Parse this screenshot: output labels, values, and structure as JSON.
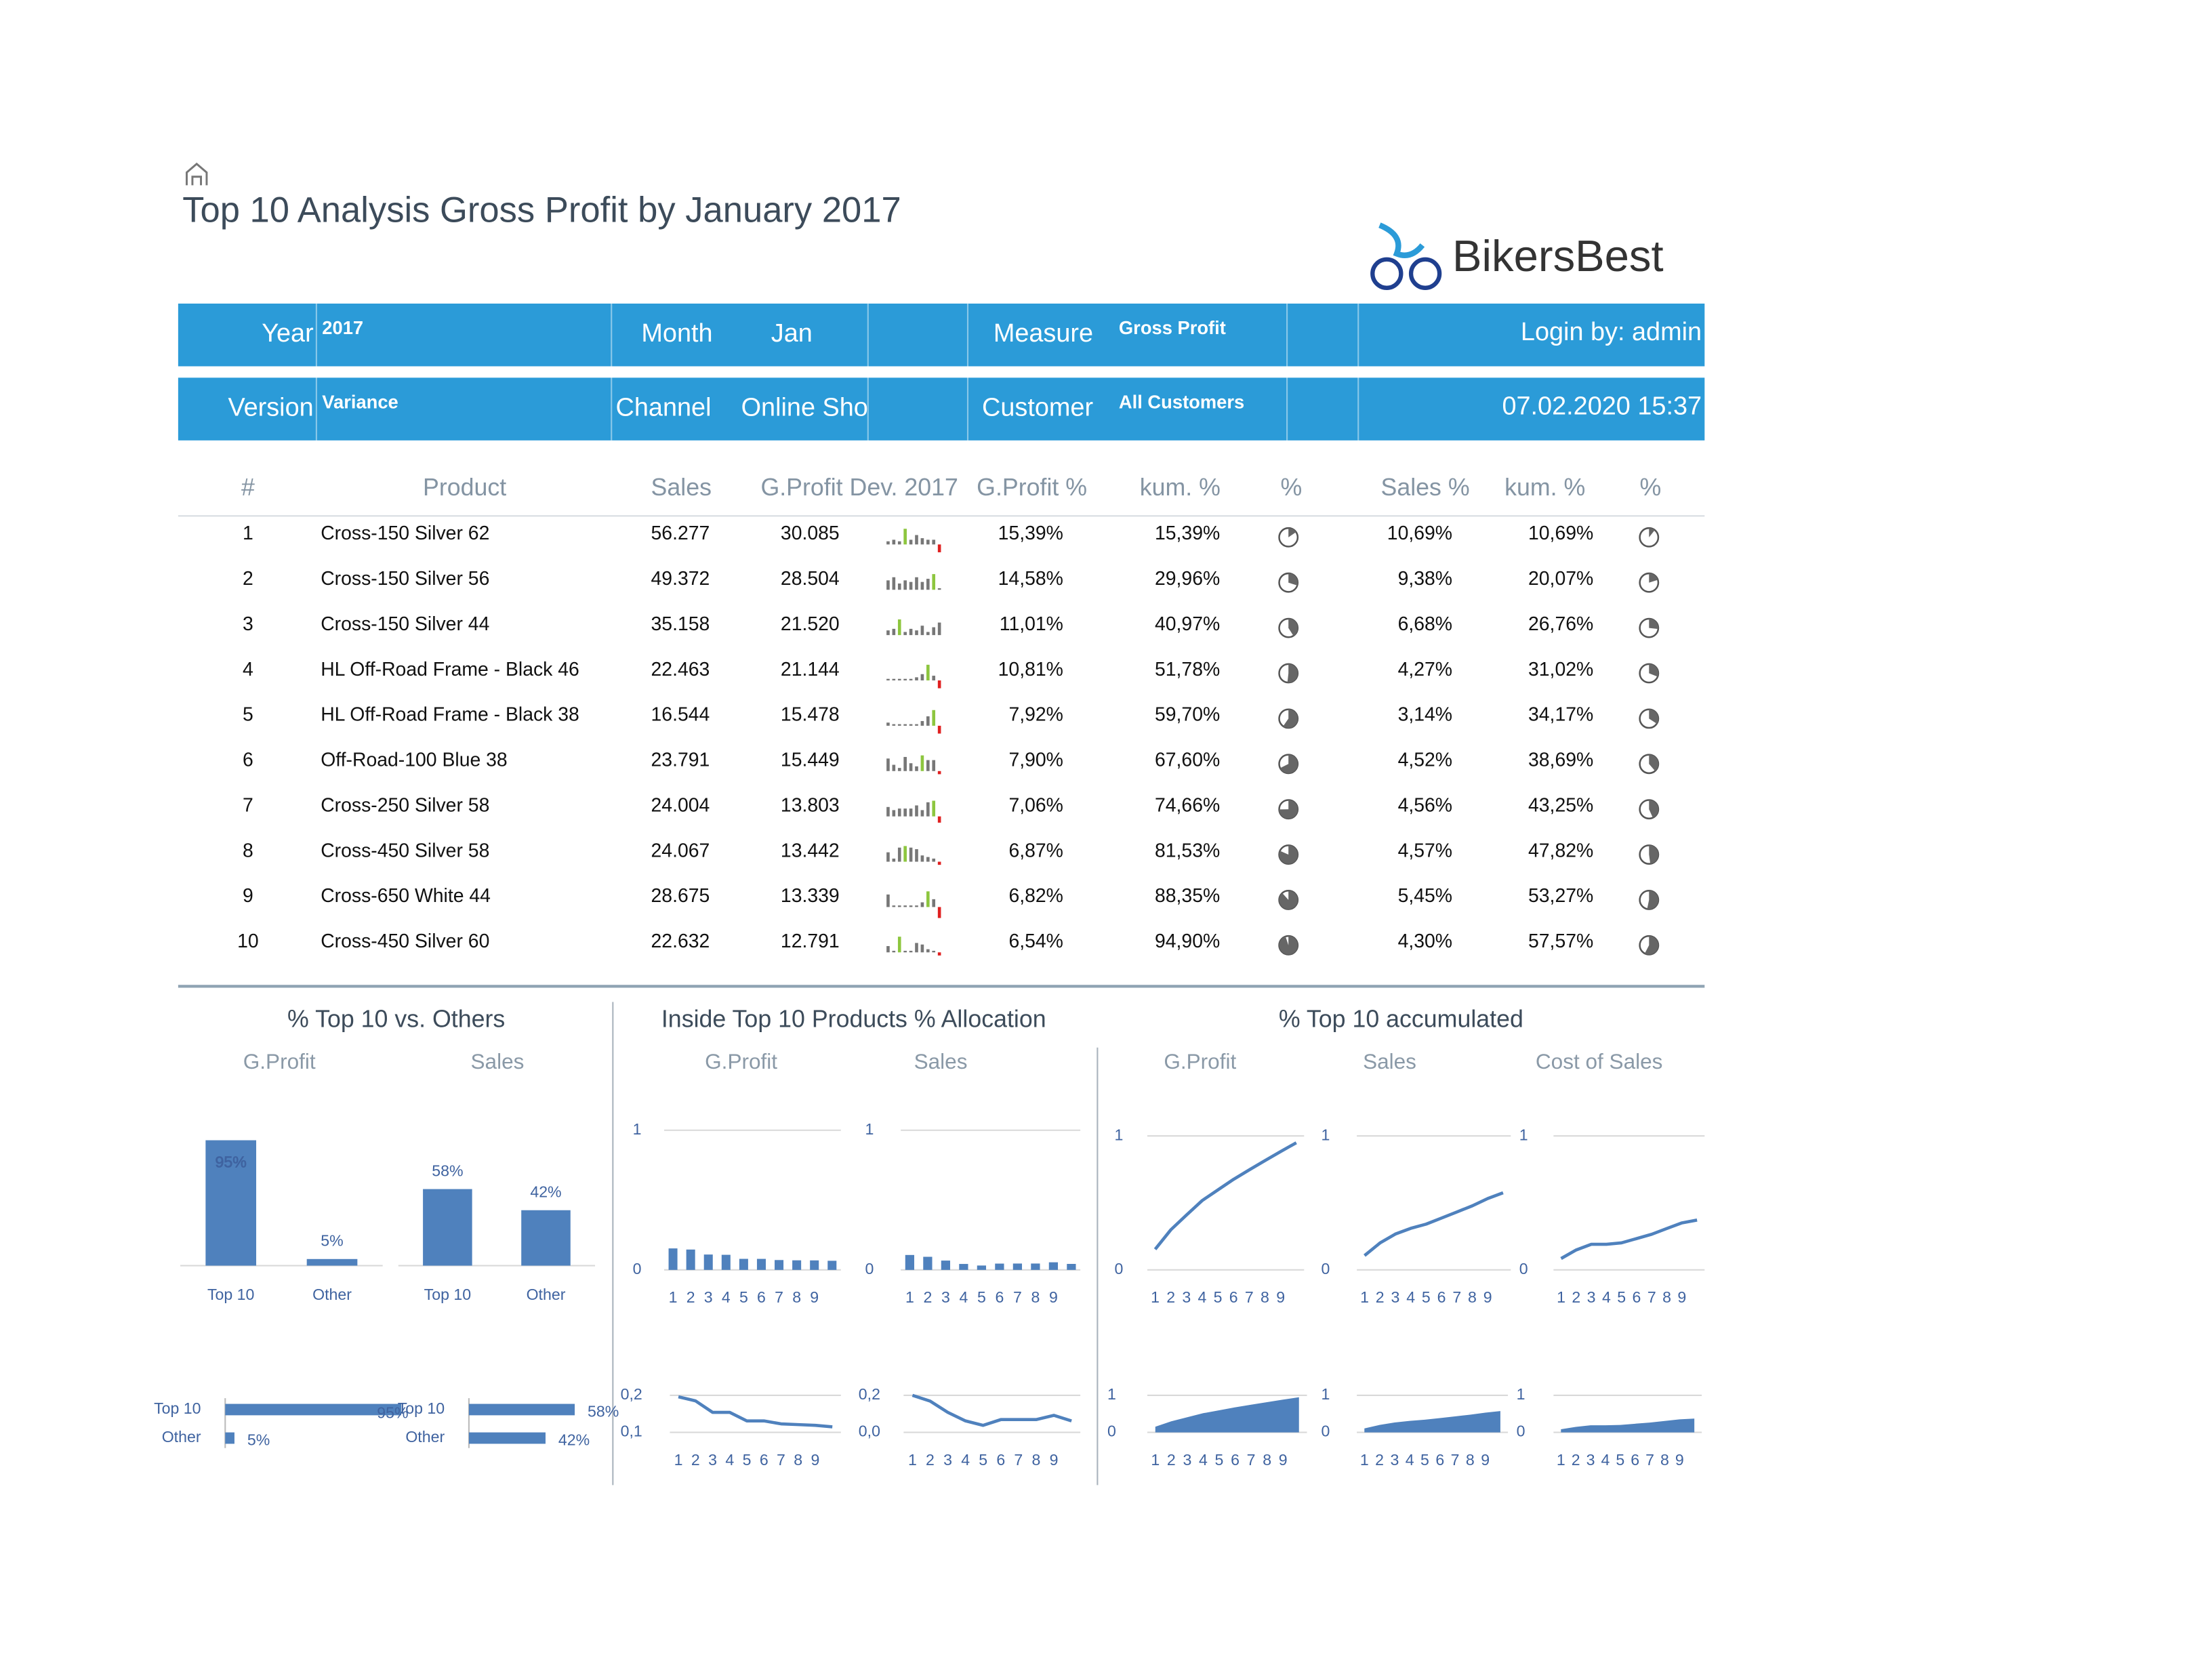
{
  "header": {
    "title": "Top 10 Analysis Gross Profit by January 2017",
    "logo": "BikersBest"
  },
  "filters": {
    "year_label": "Year",
    "year": "2017",
    "month_label": "Month",
    "month": "Jan",
    "measure_label": "Measure",
    "measure": "Gross Profit",
    "login": "Login by: admin",
    "version_label": "Version",
    "version": "Variance",
    "channel_label": "Channel",
    "channel": "Online Sho",
    "customer_label": "Customer",
    "customer": "All Customers",
    "datetime": "07.02.2020 15:37"
  },
  "table": {
    "header": [
      "#",
      "Product",
      "Sales",
      "G.Profit Dev. 2017",
      "G.Profit %",
      "kum. %",
      "%",
      "Sales %",
      "kum. %",
      "%"
    ],
    "rows": [
      {
        "rank": 1,
        "product": "Cross-150 Silver 62",
        "sales": "56.277",
        "gprofit": "30.085",
        "spark": [
          0.2,
          0.3,
          0.2,
          1,
          0.3,
          0.6,
          0.4,
          0.3,
          0.3,
          -0.5
        ],
        "gp_pct": "15,39%",
        "gp_kum": "15,39%",
        "sales_pct": "10,69%",
        "sales_kum": "10,69%"
      },
      {
        "rank": 2,
        "product": "Cross-150 Silver 56",
        "sales": "49.372",
        "gprofit": "28.504",
        "spark": [
          0.6,
          0.8,
          0.4,
          0.6,
          0.5,
          0.8,
          0.5,
          0.7,
          1,
          0.1
        ],
        "gp_pct": "14,58%",
        "gp_kum": "29,96%",
        "sales_pct": "9,38%",
        "sales_kum": "20,07%"
      },
      {
        "rank": 3,
        "product": "Cross-150 Silver 44",
        "sales": "35.158",
        "gprofit": "21.520",
        "spark": [
          0.3,
          0.4,
          1,
          0.2,
          0.4,
          0.3,
          0.6,
          0.2,
          0.5,
          0.8
        ],
        "gp_pct": "11,01%",
        "gp_kum": "40,97%",
        "sales_pct": "6,68%",
        "sales_kum": "26,76%"
      },
      {
        "rank": 4,
        "product": "HL Off-Road Frame - Black 46",
        "sales": "22.463",
        "gprofit": "21.144",
        "spark": [
          0.1,
          0.1,
          0.1,
          0.1,
          0.1,
          0.2,
          0.4,
          1,
          0.3,
          -0.5
        ],
        "gp_pct": "10,81%",
        "gp_kum": "51,78%",
        "sales_pct": "4,27%",
        "sales_kum": "31,02%"
      },
      {
        "rank": 5,
        "product": "HL Off-Road Frame - Black 38",
        "sales": "16.544",
        "gprofit": "15.478",
        "spark": [
          0.2,
          0.1,
          0.1,
          0.1,
          0.1,
          0.1,
          0.3,
          0.6,
          1,
          -0.5
        ],
        "gp_pct": "7,92%",
        "gp_kum": "59,70%",
        "sales_pct": "3,14%",
        "sales_kum": "34,17%"
      },
      {
        "rank": 6,
        "product": "Off-Road-100 Blue 38",
        "sales": "23.791",
        "gprofit": "15.449",
        "spark": [
          0.8,
          0.4,
          0.2,
          0.9,
          0.5,
          0.3,
          1,
          0.7,
          0.7,
          -0.2
        ],
        "gp_pct": "7,90%",
        "gp_kum": "67,60%",
        "sales_pct": "4,52%",
        "sales_kum": "38,69%"
      },
      {
        "rank": 7,
        "product": "Cross-250 Silver 58",
        "sales": "24.004",
        "gprofit": "13.803",
        "spark": [
          0.6,
          0.4,
          0.5,
          0.5,
          0.5,
          0.7,
          0.4,
          0.9,
          1,
          -0.4
        ],
        "gp_pct": "7,06%",
        "gp_kum": "74,66%",
        "sales_pct": "4,56%",
        "sales_kum": "43,25%"
      },
      {
        "rank": 8,
        "product": "Cross-450 Silver 58",
        "sales": "24.067",
        "gprofit": "13.442",
        "spark": [
          0.6,
          0.2,
          0.9,
          1,
          0.9,
          0.8,
          0.4,
          0.3,
          0.2,
          -0.2
        ],
        "gp_pct": "6,87%",
        "gp_kum": "81,53%",
        "sales_pct": "4,57%",
        "sales_kum": "47,82%"
      },
      {
        "rank": 9,
        "product": "Cross-650 White 44",
        "sales": "28.675",
        "gprofit": "13.339",
        "spark": [
          0.8,
          0.1,
          0.1,
          0.1,
          0.1,
          0.1,
          0.3,
          1,
          0.5,
          -0.7
        ],
        "gp_pct": "6,82%",
        "gp_kum": "88,35%",
        "sales_pct": "5,45%",
        "sales_kum": "53,27%"
      },
      {
        "rank": 10,
        "product": "Cross-450 Silver 60",
        "sales": "22.632",
        "gprofit": "12.791",
        "spark": [
          0.4,
          0.1,
          1,
          0.1,
          0.1,
          0.6,
          0.5,
          0.2,
          0.1,
          -0.2
        ],
        "gp_pct": "6,54%",
        "gp_kum": "94,90%",
        "sales_pct": "4,30%",
        "sales_kum": "57,57%"
      }
    ]
  },
  "panels": [
    "% Top 10 vs. Others",
    "Inside Top 10 Products % Allocation",
    "% Top 10 accumulated"
  ],
  "chart_data": [
    {
      "type": "bar",
      "title": "G.Profit",
      "categories": [
        "Top 10",
        "Other"
      ],
      "values": [
        95,
        5
      ],
      "value_labels": [
        "95%",
        "5%"
      ],
      "color": "#4f81bd",
      "ylim": [
        0,
        100
      ]
    },
    {
      "type": "bar",
      "title": "Sales",
      "categories": [
        "Top 10",
        "Other"
      ],
      "values": [
        58,
        42
      ],
      "value_labels": [
        "58%",
        "42%"
      ],
      "color": "#4f81bd",
      "ylim": [
        0,
        100
      ]
    },
    {
      "type": "hbar",
      "categories": [
        "Top 10",
        "Other"
      ],
      "values": [
        95,
        5
      ],
      "value_labels": [
        "95%",
        "5%"
      ],
      "color": "#4f81bd",
      "xlim": [
        0,
        100
      ]
    },
    {
      "type": "hbar",
      "categories": [
        "Top 10",
        "Other"
      ],
      "values": [
        58,
        42
      ],
      "value_labels": [
        "58%",
        "42%"
      ],
      "color": "#4f81bd",
      "xlim": [
        0,
        100
      ]
    },
    {
      "type": "bar",
      "title": "G.Profit",
      "categories": [
        1,
        2,
        3,
        4,
        5,
        6,
        7,
        8,
        9,
        null
      ],
      "values": [
        0.1539,
        0.1458,
        0.1101,
        0.1081,
        0.0792,
        0.079,
        0.0706,
        0.0687,
        0.0682,
        0.0654
      ],
      "color": "#4f81bd",
      "ylim": [
        0,
        1
      ],
      "yticks": [
        0,
        1
      ],
      "grid": true
    },
    {
      "type": "bar",
      "title": "Sales",
      "categories": [
        1,
        2,
        3,
        4,
        5,
        6,
        7,
        8,
        9,
        null
      ],
      "values": [
        0.1069,
        0.0938,
        0.0668,
        0.0427,
        0.0314,
        0.0452,
        0.0456,
        0.0457,
        0.0545,
        0.043
      ],
      "color": "#4f81bd",
      "ylim": [
        0,
        1
      ],
      "yticks": [
        0,
        1
      ],
      "grid": true
    },
    {
      "type": "line",
      "categories": [
        1,
        2,
        3,
        4,
        5,
        6,
        7,
        8,
        9,
        null
      ],
      "values": [
        0.196,
        0.185,
        0.154,
        0.154,
        0.131,
        0.131,
        0.123,
        0.121,
        0.119,
        0.115
      ],
      "color": "#4f81bd",
      "ylim": [
        0.1,
        0.2
      ],
      "yticks": [
        {
          "value": 0.1,
          "label": "0,1"
        },
        {
          "value": 0.2,
          "label": "0,2"
        }
      ],
      "grid": true
    },
    {
      "type": "line",
      "categories": [
        1,
        2,
        3,
        4,
        5,
        6,
        7,
        8,
        9,
        null
      ],
      "values": [
        0.2,
        0.169,
        0.108,
        0.062,
        0.038,
        0.069,
        0.069,
        0.069,
        0.092,
        0.062
      ],
      "color": "#4f81bd",
      "ylim": [
        0,
        0.2
      ],
      "yticks": [
        {
          "value": 0,
          "label": "0,0"
        },
        {
          "value": 0.2,
          "label": "0,2"
        }
      ],
      "grid": true
    },
    {
      "type": "line",
      "title": "G.Profit",
      "categories": [
        1,
        2,
        3,
        4,
        5,
        6,
        7,
        8,
        9,
        null
      ],
      "values": [
        0.1539,
        0.2996,
        0.4097,
        0.5178,
        0.597,
        0.676,
        0.7466,
        0.8153,
        0.8835,
        0.949
      ],
      "color": "#4f81bd",
      "ylim": [
        0,
        1
      ],
      "yticks": [
        0,
        1
      ],
      "grid": true
    },
    {
      "type": "line",
      "title": "Sales",
      "categories": [
        1,
        2,
        3,
        4,
        5,
        6,
        7,
        8,
        9,
        null
      ],
      "values": [
        0.1069,
        0.2007,
        0.2676,
        0.3102,
        0.3417,
        0.3869,
        0.4325,
        0.4782,
        0.5327,
        0.5757
      ],
      "color": "#4f81bd",
      "ylim": [
        0,
        1
      ],
      "yticks": [
        0,
        1
      ],
      "grid": true
    },
    {
      "type": "line",
      "title": "Cost of Sales",
      "categories": [
        1,
        2,
        3,
        4,
        5,
        6,
        7,
        8,
        9,
        null
      ],
      "values": [
        0.085,
        0.149,
        0.191,
        0.191,
        0.202,
        0.234,
        0.266,
        0.309,
        0.351,
        0.372
      ],
      "color": "#4f81bd",
      "ylim": [
        0,
        1
      ],
      "yticks": [
        0,
        1
      ],
      "grid": true
    },
    {
      "type": "area",
      "categories": [
        1,
        2,
        3,
        4,
        5,
        6,
        7,
        8,
        9,
        null
      ],
      "values": [
        0.1539,
        0.2996,
        0.4097,
        0.5178,
        0.597,
        0.676,
        0.7466,
        0.8153,
        0.8835,
        0.949
      ],
      "color": "#4f81bd",
      "ylim": [
        0,
        1
      ],
      "yticks": [
        0,
        1
      ],
      "grid": true
    },
    {
      "type": "area",
      "categories": [
        1,
        2,
        3,
        4,
        5,
        6,
        7,
        8,
        9,
        null
      ],
      "values": [
        0.1069,
        0.2007,
        0.2676,
        0.3102,
        0.3417,
        0.3869,
        0.4325,
        0.4782,
        0.5327,
        0.5757
      ],
      "color": "#4f81bd",
      "ylim": [
        0,
        1
      ],
      "yticks": [
        0,
        1
      ],
      "grid": true
    },
    {
      "type": "area",
      "categories": [
        1,
        2,
        3,
        4,
        5,
        6,
        7,
        8,
        9,
        null
      ],
      "values": [
        0.085,
        0.149,
        0.191,
        0.191,
        0.202,
        0.234,
        0.266,
        0.309,
        0.351,
        0.372
      ],
      "color": "#4f81bd",
      "ylim": [
        0,
        1
      ],
      "yticks": [
        0,
        1
      ],
      "grid": true
    }
  ]
}
